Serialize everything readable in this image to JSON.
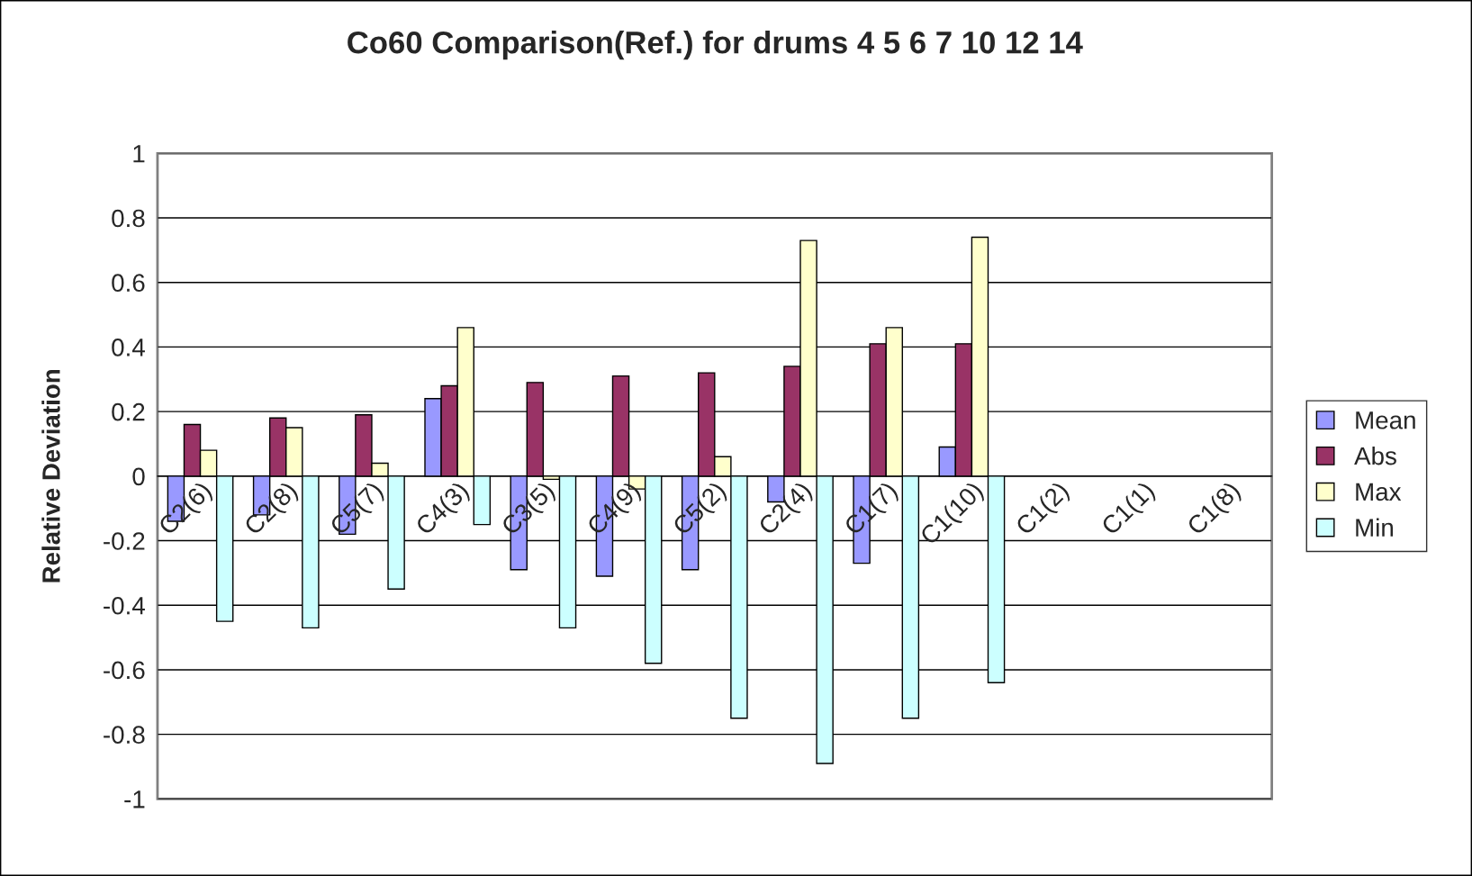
{
  "chart_data": {
    "type": "bar",
    "title": "Co60 Comparison(Ref.) for drums 4 5 6 7 10 12 14",
    "ylabel": "Relative Deviation",
    "categories": [
      "C2(6)",
      "C2(8)",
      "C5(7)",
      "C4(3)",
      "C3(5)",
      "C4(9)",
      "C5(2)",
      "C2(4)",
      "C1(7)",
      "C1(10)",
      "C1(2)",
      "C1(1)",
      "C1(8)"
    ],
    "series": [
      {
        "name": "Mean",
        "color": "#9999ff",
        "values": [
          -0.14,
          -0.12,
          -0.18,
          0.24,
          -0.29,
          -0.31,
          -0.29,
          -0.08,
          -0.27,
          0.09,
          null,
          null,
          null
        ]
      },
      {
        "name": "Abs",
        "color": "#993366",
        "values": [
          0.16,
          0.18,
          0.19,
          0.28,
          0.29,
          0.31,
          0.32,
          0.34,
          0.41,
          0.41,
          null,
          null,
          null
        ]
      },
      {
        "name": "Max",
        "color": "#ffffcc",
        "values": [
          0.08,
          0.15,
          0.04,
          0.46,
          -0.01,
          -0.04,
          0.06,
          0.73,
          0.46,
          0.74,
          null,
          null,
          null
        ]
      },
      {
        "name": "Min",
        "color": "#ccffff",
        "values": [
          -0.45,
          -0.47,
          -0.35,
          -0.15,
          -0.47,
          -0.58,
          -0.75,
          -0.89,
          -0.75,
          -0.64,
          null,
          null,
          null
        ]
      }
    ],
    "ylim": [
      -1,
      1
    ],
    "yticks": [
      -1,
      -0.8,
      -0.6,
      -0.4,
      -0.2,
      0,
      0.2,
      0.4,
      0.6,
      0.8,
      1
    ],
    "grid": "y",
    "legend": "right"
  }
}
